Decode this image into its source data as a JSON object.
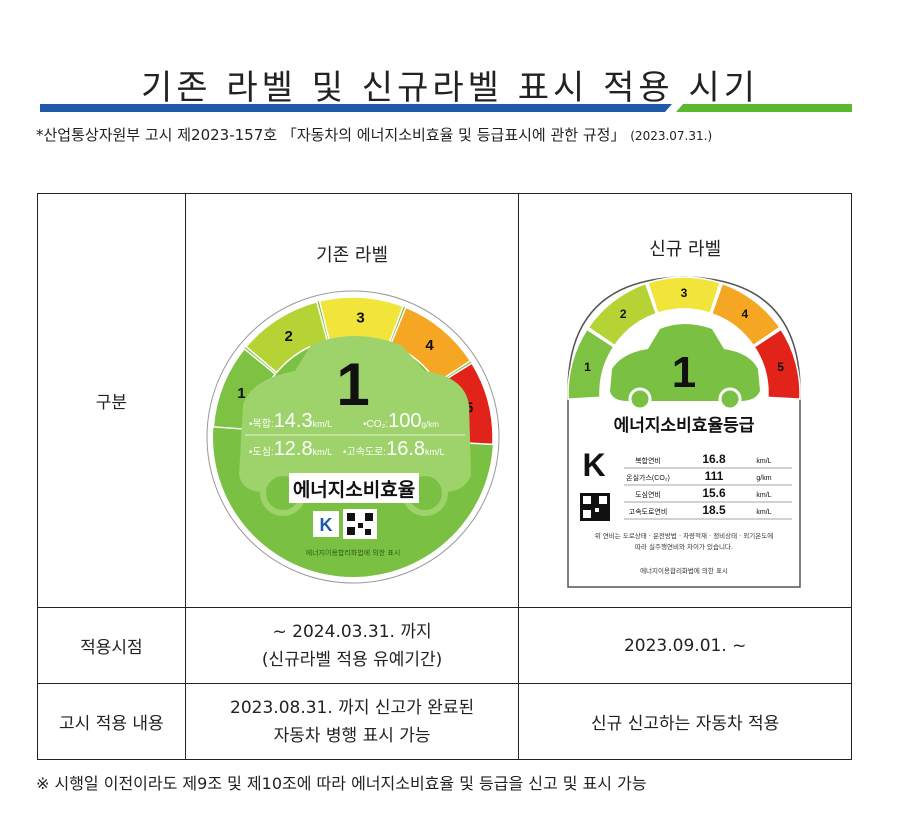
{
  "title": "기존 라벨 및 신규라벨 표시 적용 시기",
  "notice": {
    "text": "*산업통상자원부 고시 제2023-157호 「자동차의 에너지소비효율 및 등급표시에 관한 규정」",
    "date": "(2023.07.31.)"
  },
  "table": {
    "row_label_category": "구분",
    "old_label_header": "기존 라벨",
    "new_label_header": "신규 라벨",
    "row_label_apply_date": "적용시점",
    "old_apply_line1": "~ 2024.03.31. 까지",
    "old_apply_line2": "(신규라벨 적용 유예기간)",
    "new_apply": "2023.09.01. ~",
    "row_label_notice": "고시 적용 내용",
    "old_notice_line1": "2023.08.31. 까지 신고가 완료된",
    "old_notice_line2": "자동차 병행 표시 가능",
    "new_notice": "신규 신고하는 자동차 적용"
  },
  "old_label": {
    "grade": "1",
    "scale": [
      "1",
      "2",
      "3",
      "4",
      "5"
    ],
    "combined_label": "•복합:",
    "combined_value": "14.3",
    "combined_unit": "km/L",
    "co2_label": "•CO₂:",
    "co2_value": "100",
    "co2_unit": "g/km",
    "city_label": "•도심:",
    "city_value": "12.8",
    "city_unit": "km/L",
    "highway_label": "•고속도로:",
    "highway_value": "16.8",
    "highway_unit": "km/L",
    "title": "에너지소비효율",
    "footer": "에너지이용합리화법에 의한 표시",
    "scale_colors": [
      "#7dc242",
      "#b5d334",
      "#f1e43a",
      "#f5a623",
      "#e2231a"
    ],
    "body_color": "#7ac143"
  },
  "new_label": {
    "grade": "1",
    "scale": [
      "1",
      "2",
      "3",
      "4",
      "5"
    ],
    "title": "에너지소비효율등급",
    "rows": [
      {
        "name": "복합연비",
        "value": "16.8",
        "unit": "km/L"
      },
      {
        "name": "온실가스(CO₂)",
        "value": "111",
        "unit": "g/km"
      },
      {
        "name": "도심연비",
        "value": "15.6",
        "unit": "km/L"
      },
      {
        "name": "고속도로연비",
        "value": "18.5",
        "unit": "km/L"
      }
    ],
    "disclaimer_line1": "위 연비는 도로상태 · 운전방법 · 차량적재 · 정비상태 · 외기온도에",
    "disclaimer_line2": "따라 실주행연비와 차이가 있습니다.",
    "footer": "에너지이용합리화법에 의한 표시"
  },
  "footnote": "※ 시행일 이전이라도 제9조 및 제10조에 따라 에너지소비효율 및 등급을 신고 및 표시 가능"
}
